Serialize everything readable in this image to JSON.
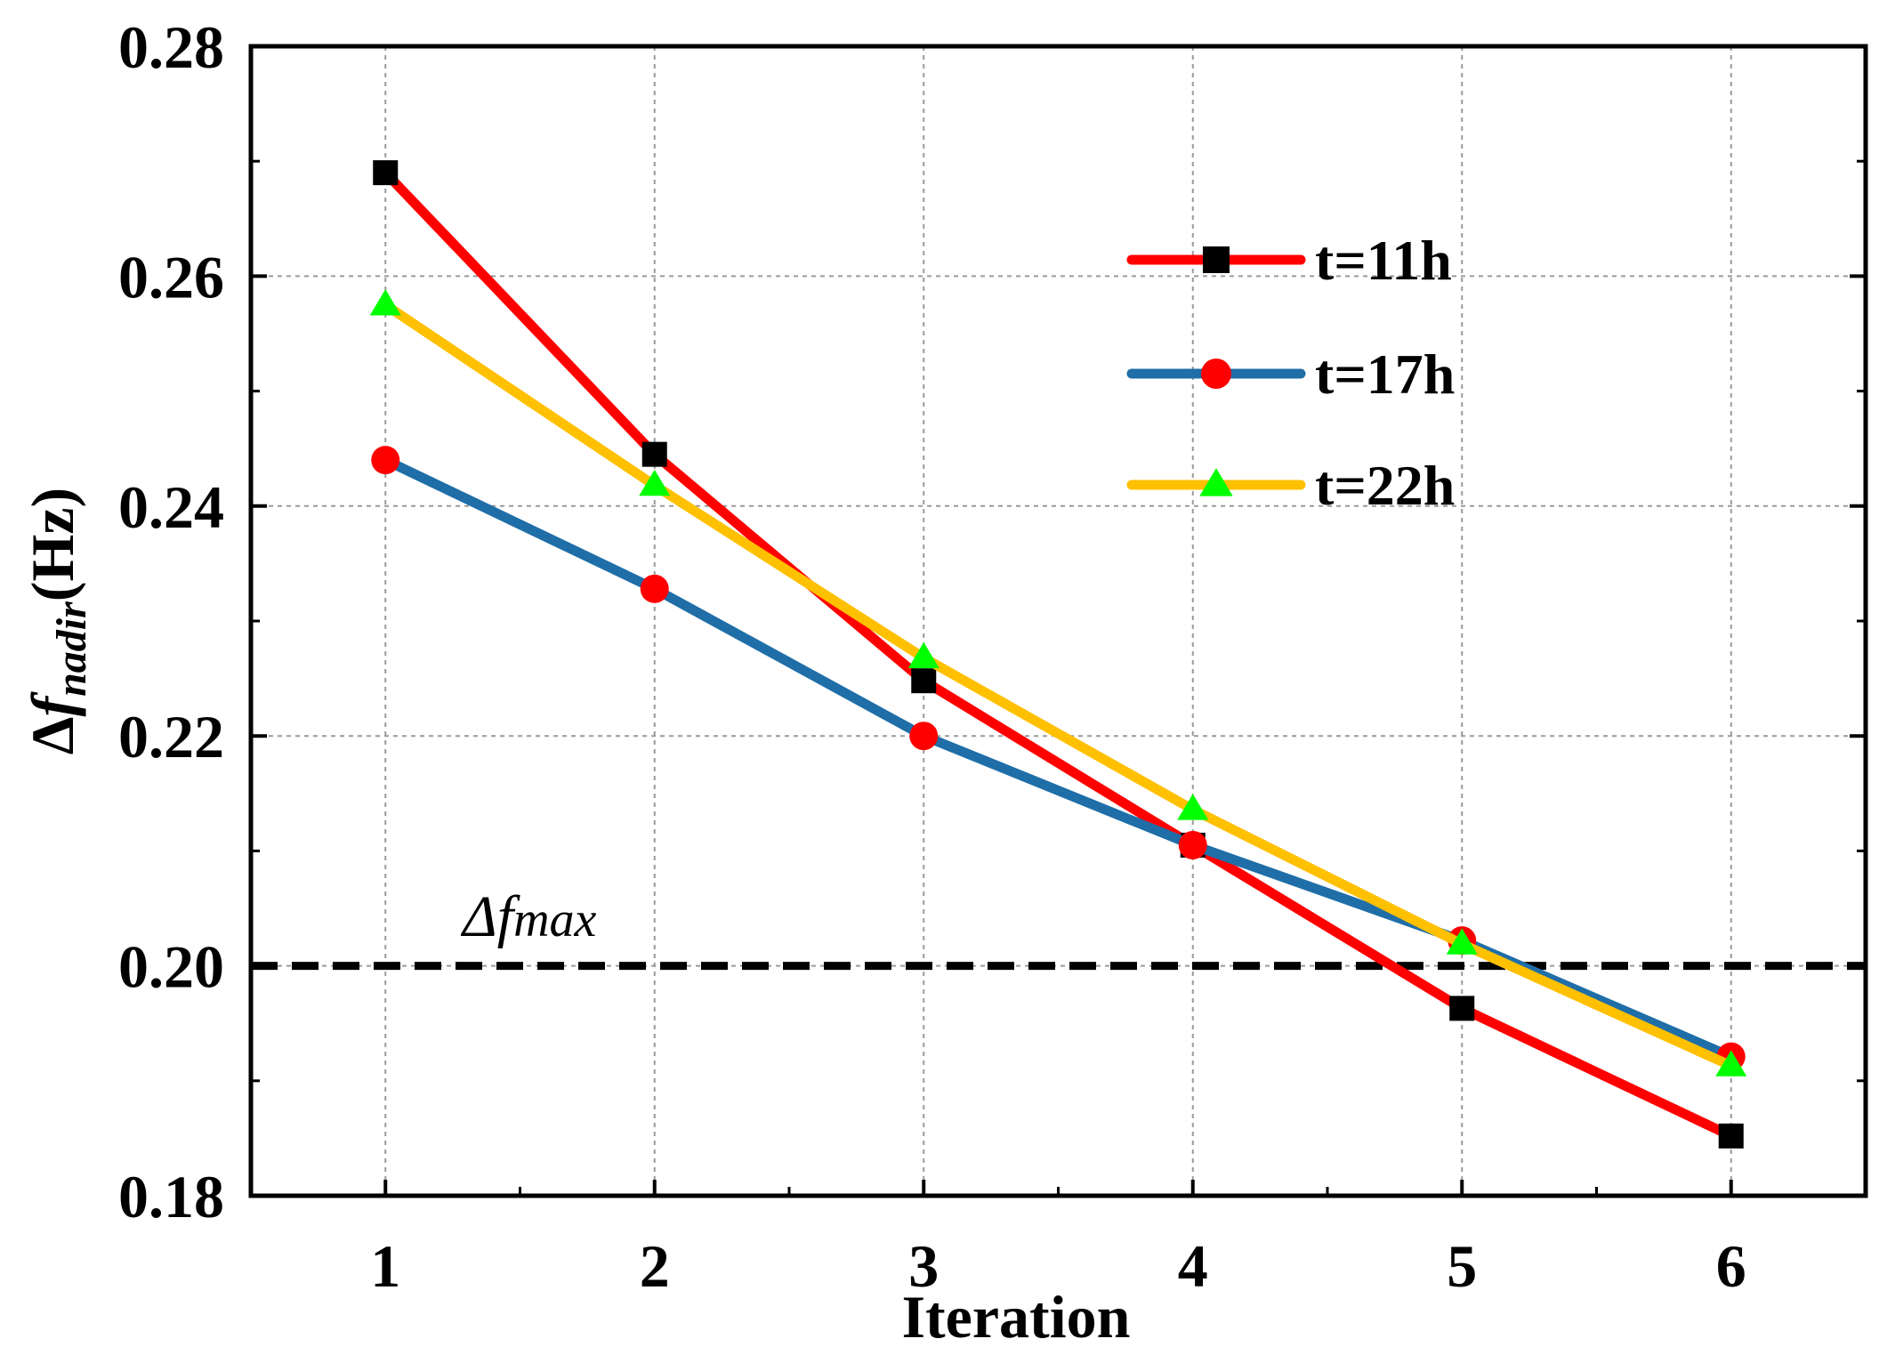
{
  "chart_data": {
    "type": "line",
    "title": "",
    "xlabel": "Iteration",
    "ylabel": {
      "prefix": "Δ",
      "var": "f",
      "sub": "nadir",
      "unit": "(Hz)"
    },
    "x": [
      1,
      2,
      3,
      4,
      5,
      6
    ],
    "xlim": [
      0.5,
      6.5
    ],
    "ylim": [
      0.18,
      0.28
    ],
    "xticks": [
      "1",
      "2",
      "3",
      "4",
      "5",
      "6"
    ],
    "yticks": [
      "0.18",
      "0.20",
      "0.22",
      "0.24",
      "0.26",
      "0.28"
    ],
    "grid": true,
    "legend_position": "top-right",
    "series": [
      {
        "name": "t=11h",
        "values": [
          0.269,
          0.2445,
          0.2248,
          0.2105,
          0.1963,
          0.1852
        ],
        "line_color": "#ff0000",
        "marker": "square",
        "marker_color": "#000000"
      },
      {
        "name": "t=17h",
        "values": [
          0.244,
          0.2328,
          0.22,
          0.2105,
          0.2022,
          0.1921
        ],
        "line_color": "#1f6ea8",
        "marker": "circle",
        "marker_color": "#ff0000"
      },
      {
        "name": "t=22h",
        "values": [
          0.2575,
          0.2418,
          0.2268,
          0.2136,
          0.2019,
          0.1913
        ],
        "line_color": "#ffc000",
        "marker": "triangle",
        "marker_color": "#00ff00"
      }
    ],
    "reference_line": {
      "value": 0.2,
      "label": {
        "prefix": "Δ",
        "var": "f",
        "sub": "max"
      },
      "style": "dashed",
      "color": "#000000"
    }
  }
}
